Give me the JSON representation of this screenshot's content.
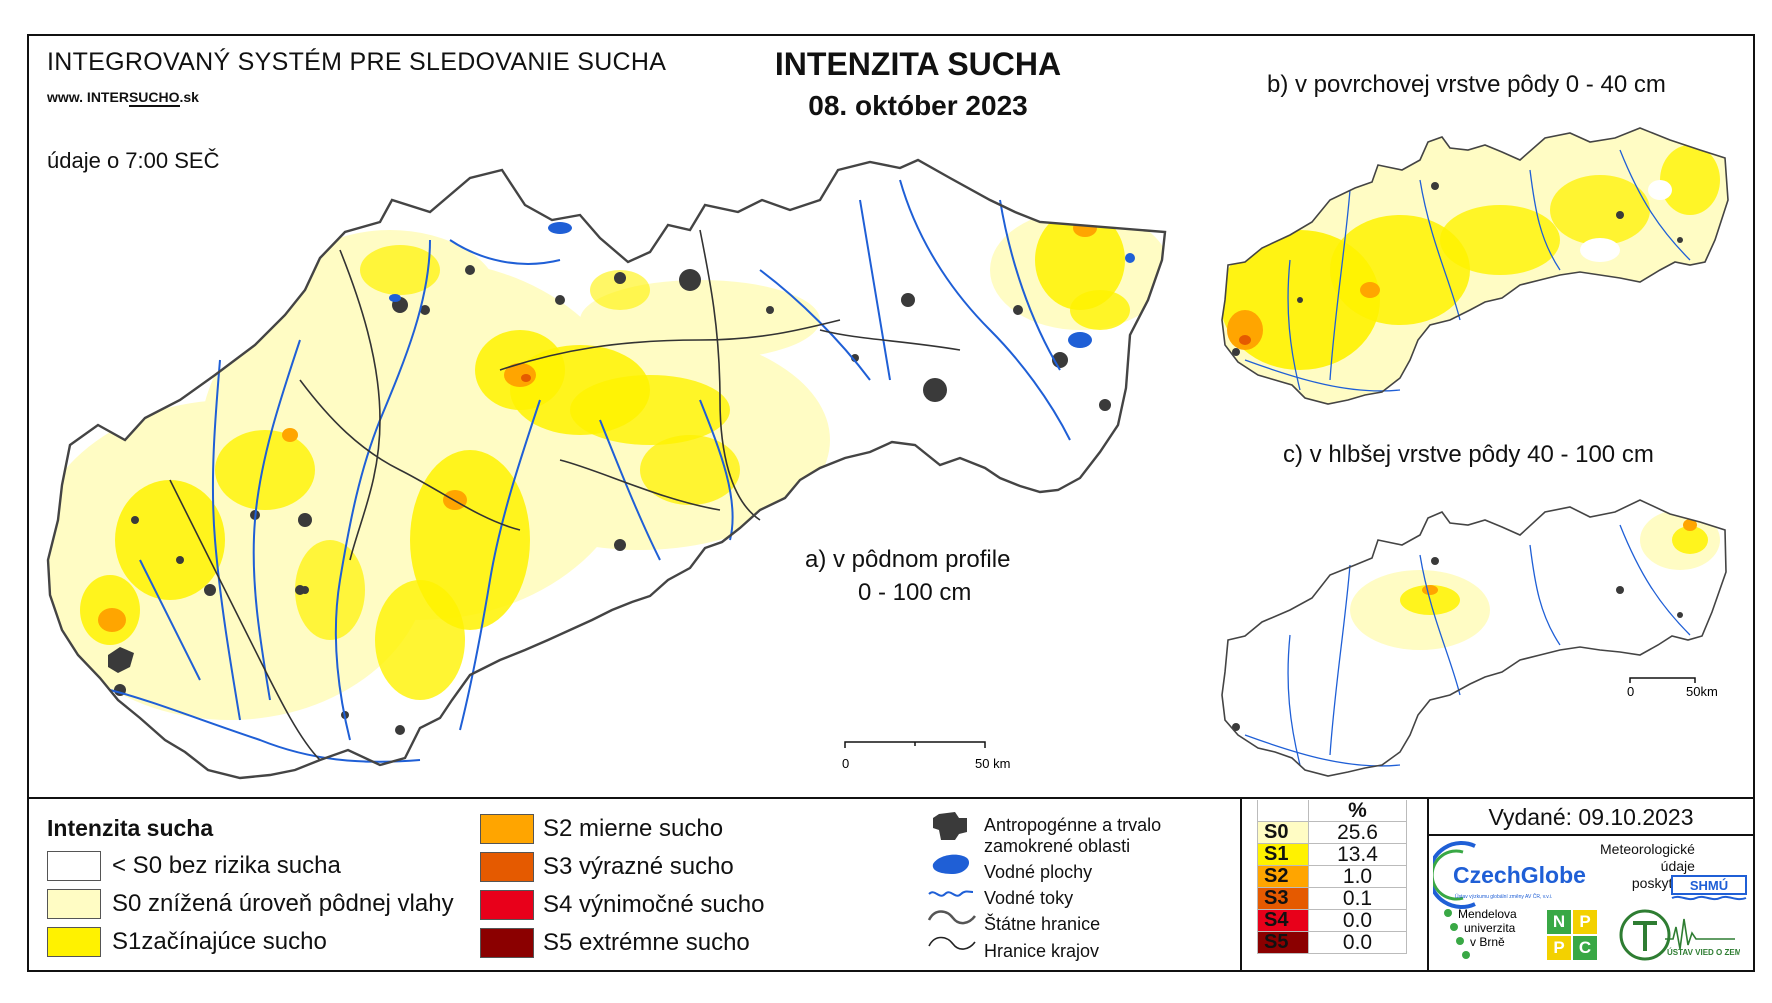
{
  "header": {
    "system_title": "INTEGROVANÝ SYSTÉM PRE SLEDOVANIE SUCHA",
    "website_prefix": "www. INTER",
    "website_brand": "SUCHO",
    "website_suffix": ".sk",
    "data_time": "údaje o 7:00 SEČ",
    "map_title": "INTENZITA SUCHA",
    "map_date": "08. október 2023"
  },
  "panels": {
    "a_line1": "a) v pôdnom profile",
    "a_line2": "0 - 100 cm",
    "b": "b) v povrchovej vrstve pôdy 0 - 40 cm",
    "c": "c) v hlbšej vrstve pôdy 40 - 100 cm"
  },
  "scale": {
    "main_start": "0",
    "main_end": "50 km",
    "small_start": "0",
    "small_end": "50km"
  },
  "legend": {
    "title": "Intenzita sucha",
    "classes": [
      {
        "label": "< S0 bez rizika sucha",
        "color": "#FFFFFF"
      },
      {
        "label": "S0 znížená úroveň pôdnej vlahy",
        "color": "#FFFCC4"
      },
      {
        "label": "S1začínajúce sucho",
        "color": "#FFF200"
      },
      {
        "label": "S2 mierne sucho",
        "color": "#FFA500"
      },
      {
        "label": "S3 výrazné sucho",
        "color": "#E55A00"
      },
      {
        "label": "S4 výnimočné sucho",
        "color": "#E8001A"
      },
      {
        "label": "S5 extrémne sucho",
        "color": "#8B0000"
      }
    ]
  },
  "symbols": {
    "urban": "Antropogénne a trvalo zamokrené oblasti",
    "urban_l1": "Antropogénne a trvalo",
    "urban_l2": "zamokrené oblasti",
    "water_bodies": "Vodné plochy",
    "rivers": "Vodné toky",
    "state_border": "Štátne hranice",
    "region_border": "Hranice krajov"
  },
  "stats": {
    "header": "%",
    "rows": [
      {
        "key": "S0",
        "value": "25.6",
        "color": "#FFFCC4"
      },
      {
        "key": "S1",
        "value": "13.4",
        "color": "#FFF200"
      },
      {
        "key": "S2",
        "value": "1.0",
        "color": "#FFA500"
      },
      {
        "key": "S3",
        "value": "0.1",
        "color": "#E55A00"
      },
      {
        "key": "S4",
        "value": "0.0",
        "color": "#E8001A"
      },
      {
        "key": "S5",
        "value": "0.0",
        "color": "#8B0000"
      }
    ]
  },
  "credits": {
    "issued": "Vydané: 09.10.2023",
    "czechglobe": "CzechGlobe",
    "czechglobe_sub": "Ústav výzkumu globální změny AV ČR, v.v.i.",
    "meteo_l1": "Meteorologické",
    "meteo_l2": "údaje",
    "meteo_l3": "poskytuje:",
    "shmu": "SHMÚ",
    "mendel_l1": "Mendelova",
    "mendel_l2": "univerzita",
    "mendel_l3": "v Brně",
    "nppc": [
      "N",
      "P",
      "P",
      "C"
    ],
    "uvz": "ÚSTAV VIED O ZEMI"
  },
  "colors": {
    "river": "#1f5fd6",
    "urban": "#3a3a3a",
    "border": "#333333"
  }
}
